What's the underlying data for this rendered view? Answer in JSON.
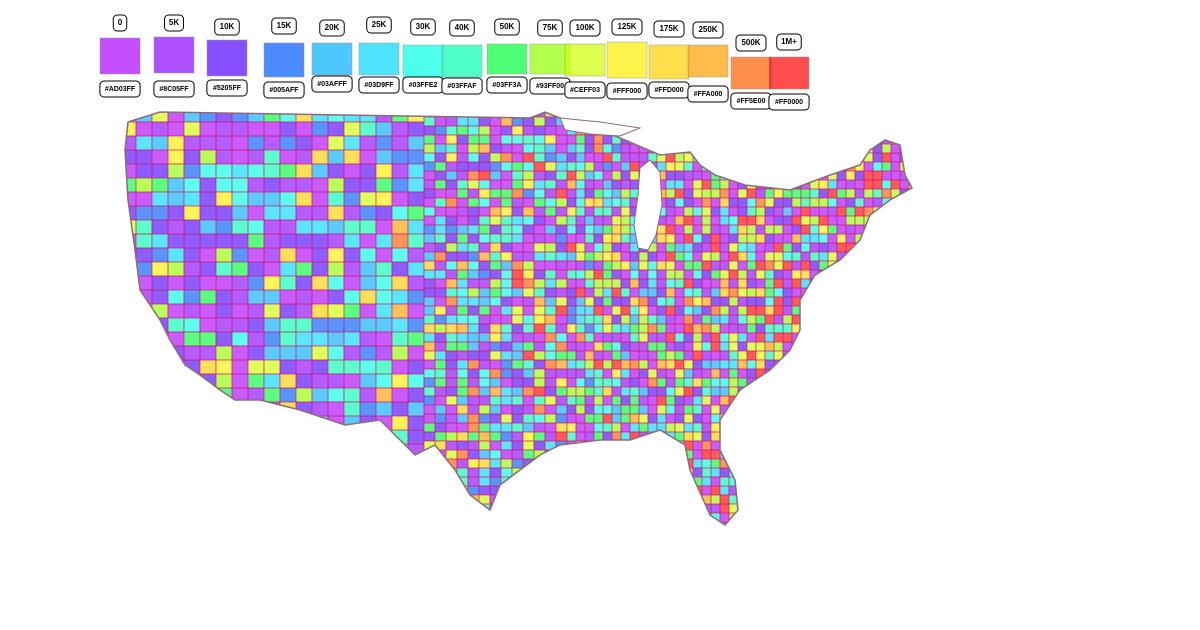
{
  "legend": {
    "items": [
      {
        "label": "0",
        "code": "#AD03FF"
      },
      {
        "label": "5K",
        "code": "#8C05FF"
      },
      {
        "label": "10K",
        "code": "#5205FF"
      },
      {
        "label": "15K",
        "code": "#005AFF"
      },
      {
        "label": "20K",
        "code": "#03AFFF"
      },
      {
        "label": "25K",
        "code": "#03D9FF"
      },
      {
        "label": "30K",
        "code": "#03FFE2"
      },
      {
        "label": "40K",
        "code": "#03FFAF"
      },
      {
        "label": "50K",
        "code": "#03FF3A"
      },
      {
        "label": "75K",
        "code": "#93FF00"
      },
      {
        "label": "100K",
        "code": "#CEFF03"
      },
      {
        "label": "125K",
        "code": "#FFF000"
      },
      {
        "label": "175K",
        "code": "#FFD000"
      },
      {
        "label": "250K",
        "code": "#FFA000"
      },
      {
        "label": "500K",
        "code": "#FF5E00"
      },
      {
        "label": "1M+",
        "code": "#FF0000"
      }
    ]
  }
}
